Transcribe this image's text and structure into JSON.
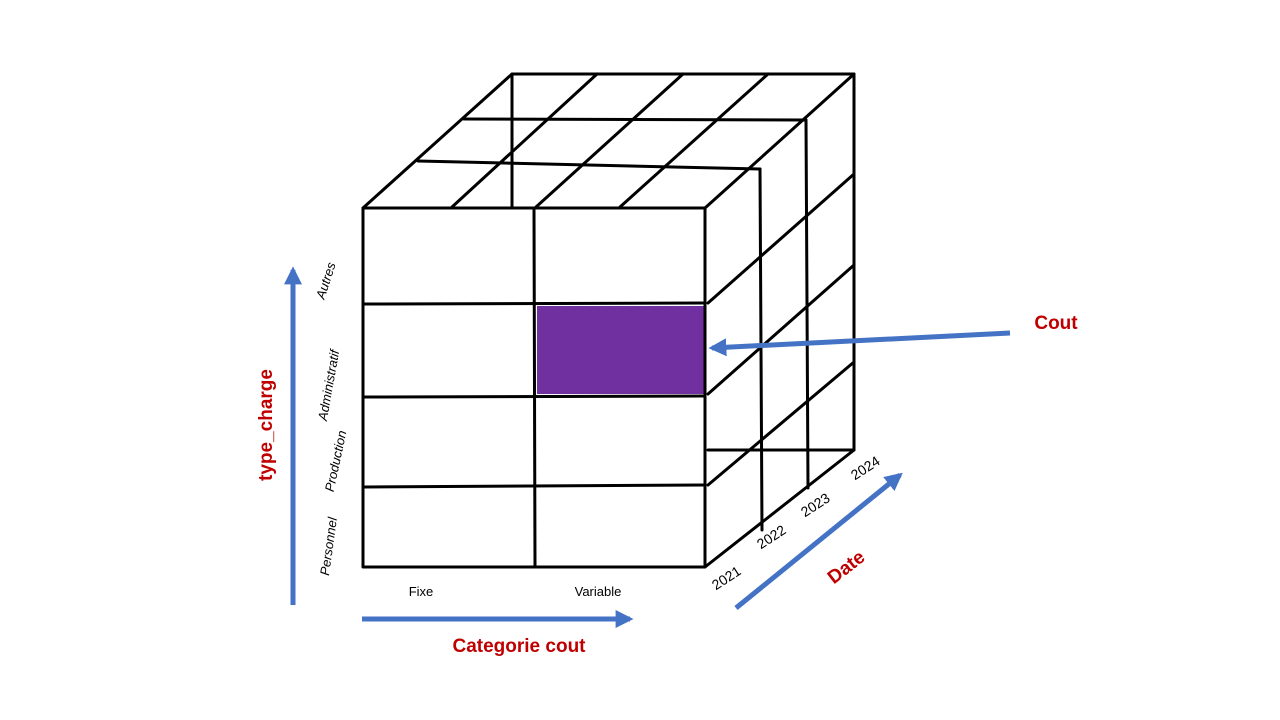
{
  "colors": {
    "axis_arrow": "#4472C4",
    "axis_title": "#C00000",
    "highlight_cell": "#7030A0",
    "grid_line": "#000000"
  },
  "axes": {
    "vertical_title": "type_charge",
    "horizontal_title": "Categorie cout",
    "depth_title": "Date"
  },
  "measure_label": "Cout",
  "rows": [
    "Autres",
    "Administratif",
    "Production",
    "Personnel"
  ],
  "columns": [
    "Fixe",
    "Variable"
  ],
  "years": [
    "2021",
    "2022",
    "2023",
    "2024"
  ],
  "highlighted_cell": {
    "row": "Administratif",
    "column": "Variable"
  }
}
